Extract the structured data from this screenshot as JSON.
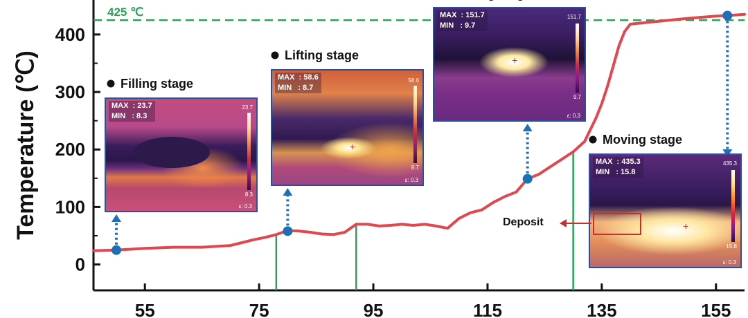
{
  "chart_data": {
    "type": "line",
    "ylabel": "Temperature (℃)",
    "xlabel": "",
    "xlim": [
      46,
      160
    ],
    "ylim": [
      -45,
      460
    ],
    "xticks": [
      55,
      75,
      95,
      115,
      135,
      155
    ],
    "yticks": [
      0,
      100,
      200,
      300,
      400
    ],
    "series": [
      {
        "color": "#e0484f",
        "x": [
          46,
          50,
          55,
          60,
          65,
          70,
          72,
          74,
          76,
          78,
          80,
          82,
          84,
          86,
          88,
          90,
          92,
          94,
          96,
          98,
          100,
          102,
          104,
          106,
          108,
          110,
          112,
          114,
          116,
          118,
          120,
          122,
          124,
          126,
          128,
          130,
          132,
          134,
          135,
          136,
          137,
          138,
          139,
          140,
          142,
          145,
          150,
          155,
          157,
          160
        ],
        "y": [
          24,
          25,
          28,
          30,
          30,
          33,
          38,
          43,
          47,
          52,
          59,
          58,
          56,
          53,
          52,
          56,
          70,
          70,
          67,
          68,
          70,
          68,
          70,
          67,
          63,
          80,
          90,
          95,
          108,
          118,
          126,
          149,
          157,
          170,
          183,
          196,
          214,
          255,
          280,
          310,
          345,
          380,
          405,
          418,
          420,
          423,
          428,
          432,
          433,
          435
        ]
      }
    ],
    "reference_line": {
      "y": 425,
      "label": "425 ℃",
      "color": "#2aa05a"
    },
    "markers": [
      {
        "x": 50,
        "y": 25
      },
      {
        "x": 80,
        "y": 58
      },
      {
        "x": 122,
        "y": 149
      },
      {
        "x": 157,
        "y": 433
      }
    ],
    "stage_dividers": [
      78,
      92,
      130
    ]
  },
  "insets": [
    {
      "stage": "Filling stage",
      "max": "MAX  : 23.7",
      "min": "MIN   : 8.3",
      "scale_max": "23.7",
      "scale_min": "8.3",
      "eps": "ε: 0.3"
    },
    {
      "stage": "Lifting stage",
      "max": "MAX  : 58.6",
      "min": "MIN   : 8.7",
      "scale_max": "58.6",
      "scale_min": "8.7",
      "eps": "ε: 0.3"
    },
    {
      "stage": "Holding stage",
      "max": "MAX  : 151.7",
      "min": "MIN   : 9.7",
      "scale_max": "151.7",
      "scale_min": "9.7",
      "eps": "ε: 0.3"
    },
    {
      "stage": "Moving stage",
      "max": "MAX  : 435.3",
      "min": "MIN   : 15.8",
      "scale_max": "435.3",
      "scale_min": "15.8",
      "eps": "ε: 0.3"
    }
  ],
  "deposit_label": "Deposit"
}
